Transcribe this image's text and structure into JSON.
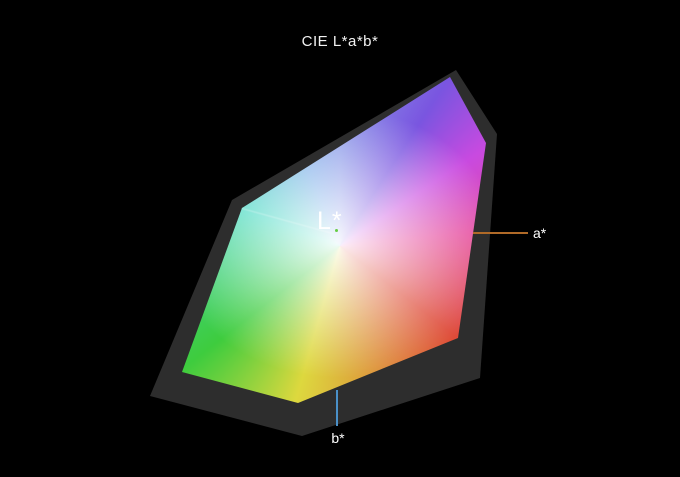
{
  "title": "CIE L*a*b*",
  "axes": {
    "l_label": "L*",
    "a_label": "a*",
    "b_label": "b*"
  },
  "colors": {
    "background": "#000000",
    "shadow": "#2d2d2d",
    "text": "#f2f2f2",
    "a-line": "#b06a28",
    "b-line": "#4a90c8",
    "marker": "#66cc44",
    "corner-top": "#7a55e0",
    "corner-blue-magenta": "#c84ae0",
    "edge-pink": "#e5489d",
    "corner-red": "#de4a38",
    "corner-yellow": "#ddd83e",
    "corner-green": "#3ecc3e",
    "corner-cyan": "#40d8c0",
    "edge-periwinkle": "#8a9ae8",
    "edge-skyblue": "#79ace8"
  }
}
